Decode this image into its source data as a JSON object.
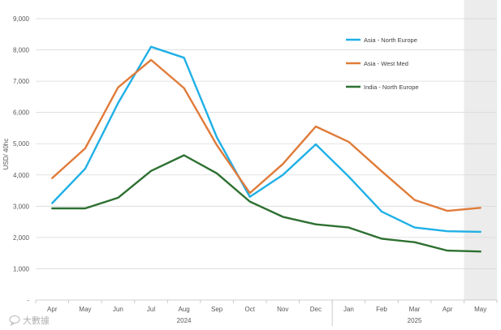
{
  "chart_data": {
    "type": "line",
    "title": "",
    "xlabel": "",
    "ylabel": "USD/ 40hc",
    "ylim": [
      0,
      9000
    ],
    "yticks": [
      0,
      1000,
      2000,
      3000,
      4000,
      5000,
      6000,
      7000,
      8000,
      9000
    ],
    "ytick_labels": [
      "-",
      "1,000",
      "2,000",
      "3,000",
      "4,000",
      "5,000",
      "6,000",
      "7,000",
      "8,000",
      "9,000"
    ],
    "categories": [
      "Apr",
      "May",
      "Jun",
      "Jul",
      "Aug",
      "Sep",
      "Oct",
      "Nov",
      "Dec",
      "Jan",
      "Feb",
      "Mar",
      "Apr",
      "May"
    ],
    "year_groups": [
      {
        "label": "2024",
        "start": 0,
        "end": 8
      },
      {
        "label": "2025",
        "start": 9,
        "end": 13
      }
    ],
    "shaded_forecast_start_index": 13,
    "grid": true,
    "legend_position": "top-right",
    "series": [
      {
        "name": "Asia - North Europe",
        "color": "#1fb0e6",
        "values": [
          3100,
          4200,
          6300,
          8100,
          7750,
          5200,
          3300,
          4000,
          4980,
          3950,
          2830,
          2320,
          2200,
          2180
        ]
      },
      {
        "name": "Asia - West Med",
        "color": "#e07b39",
        "values": [
          3900,
          4850,
          6800,
          7680,
          6780,
          4950,
          3420,
          4350,
          5550,
          5060,
          4120,
          3200,
          2850,
          2950
        ]
      },
      {
        "name": "India - North Europe",
        "color": "#2d7031",
        "values": [
          2930,
          2930,
          3270,
          4130,
          4630,
          4050,
          3150,
          2660,
          2420,
          2320,
          1960,
          1850,
          1580,
          1550
        ]
      }
    ]
  },
  "watermark": {
    "text": "大數據",
    "icon": "chat-bubble-icon"
  }
}
